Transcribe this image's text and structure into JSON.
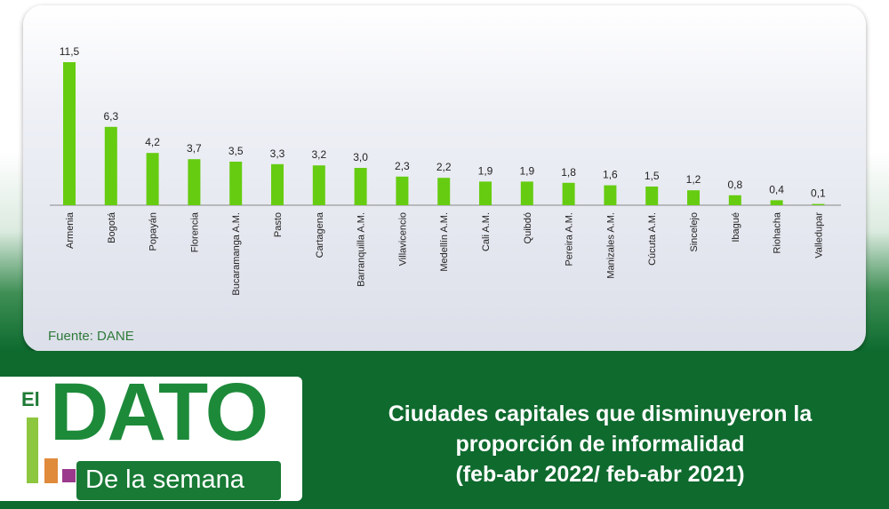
{
  "chart_data": {
    "type": "bar",
    "categories": [
      "Armenia",
      "Bogotá",
      "Popayán",
      "Florencia",
      "Bucaramanga A.M.",
      "Pasto",
      "Cartagena",
      "Barranquilla A.M.",
      "Villavicencio",
      "Medellín A.M.",
      "Cali A.M.",
      "Quibdó",
      "Pereira A.M.",
      "Manizales A.M.",
      "Cúcuta A.M.",
      "Sincelejo",
      "Ibagué",
      "Riohacha",
      "Valledupar"
    ],
    "values": [
      11.5,
      6.3,
      4.2,
      3.7,
      3.5,
      3.3,
      3.2,
      3.0,
      2.3,
      2.2,
      1.9,
      1.9,
      1.8,
      1.6,
      1.5,
      1.2,
      0.8,
      0.4,
      0.1
    ],
    "value_labels": [
      "11,5",
      "6,3",
      "4,2",
      "3,7",
      "3,5",
      "3,3",
      "3,2",
      "3,0",
      "2,3",
      "2,2",
      "1,9",
      "1,9",
      "1,8",
      "1,6",
      "1,5",
      "1,2",
      "0,8",
      "0,4",
      "0,1"
    ],
    "bar_color": "#66cc11",
    "grid": false,
    "ylim": [
      0,
      11.5
    ]
  },
  "source_text": "Fuente: DANE",
  "logo": {
    "el": "El",
    "dato": "DATO",
    "subtitle": "De la semana",
    "bar_colors": [
      "#8dc63f",
      "#e08a3c",
      "#9b3a8c"
    ]
  },
  "headline": [
    "Ciudades capitales que disminuyeron la",
    "proporción de informalidad",
    "(feb-abr 2022/ feb-abr 2021)"
  ],
  "colors": {
    "green_dark": "#0f6a2e",
    "green_logo": "#1d8a3a",
    "source_green": "#2f7a3a"
  }
}
